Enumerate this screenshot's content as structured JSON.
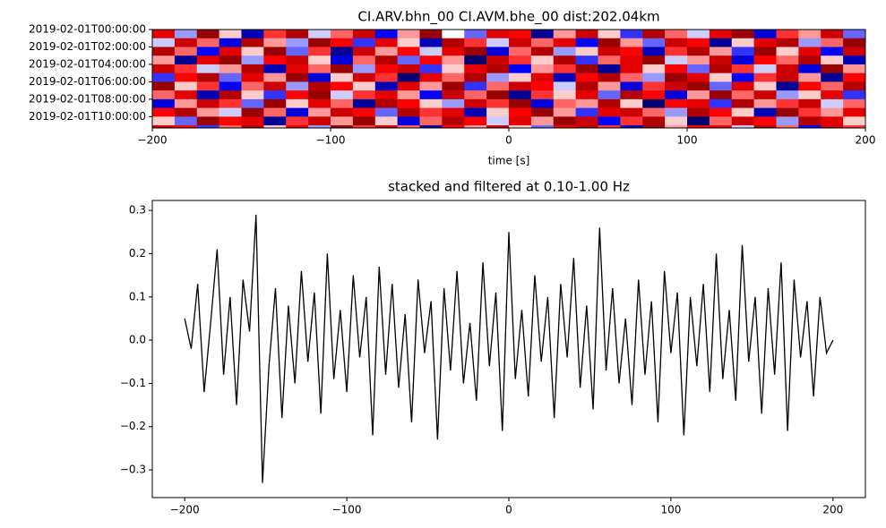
{
  "chart_data": [
    {
      "type": "heatmap",
      "title": "CI.ARV.bhn_00 CI.AVM.bhe_00  dist:202.04km",
      "xlabel": "time [s]",
      "xlim": [
        -200,
        200
      ],
      "xticks": [
        {
          "value": -200,
          "label": "−200"
        },
        {
          "value": -100,
          "label": "−100"
        },
        0,
        100,
        200
      ],
      "ylim": [
        0,
        11.3
      ],
      "yticks": [
        {
          "value": 0,
          "label": "2019-02-01T00:00:00"
        },
        {
          "value": 2,
          "label": "2019-02-01T02:00:00"
        },
        {
          "value": 4,
          "label": "2019-02-01T04:00:00"
        },
        {
          "value": 6,
          "label": "2019-02-01T06:00:00"
        },
        {
          "value": 8,
          "label": "2019-02-01T08:00:00"
        },
        {
          "value": 10,
          "label": "2019-02-01T10:00:00"
        }
      ],
      "colormap": [
        "#00004c",
        "#0000ff",
        "#ffffff",
        "#ff0000",
        "#7f0000"
      ],
      "clim": [
        -1,
        1
      ],
      "z": [
        [
          0.6,
          -0.2,
          0.9,
          0.1,
          -0.7,
          0.4,
          0.8,
          -0.1,
          0.3,
          0.7,
          -0.5,
          0.2,
          0.9,
          0.0,
          -0.3,
          0.6,
          0.5,
          -0.8,
          0.2,
          0.7,
          0.1,
          -0.4,
          0.8,
          0.3,
          -0.1,
          0.6,
          0.9,
          -0.6,
          0.4,
          0.2,
          0.7,
          -0.3
        ],
        [
          -0.1,
          0.7,
          0.3,
          -0.6,
          0.8,
          0.2,
          -0.2,
          0.9,
          0.5,
          -0.4,
          0.6,
          0.1,
          -0.7,
          0.8,
          0.4,
          -0.1,
          0.7,
          0.3,
          0.6,
          -0.5,
          0.9,
          0.2,
          -0.3,
          0.7,
          0.5,
          -0.8,
          0.1,
          0.6,
          0.8,
          -0.2,
          0.3,
          0.9
        ],
        [
          0.8,
          0.3,
          -0.5,
          0.6,
          0.1,
          0.9,
          -0.3,
          0.4,
          -0.8,
          0.7,
          0.2,
          0.5,
          -0.1,
          0.6,
          0.9,
          -0.6,
          0.3,
          0.8,
          -0.2,
          0.1,
          0.7,
          0.5,
          -0.7,
          0.4,
          0.8,
          0.2,
          -0.4,
          0.9,
          0.1,
          0.6,
          -0.5,
          0.7
        ],
        [
          0.2,
          -0.8,
          0.6,
          0.9,
          -0.2,
          0.5,
          0.7,
          0.1,
          -0.6,
          0.3,
          0.8,
          -0.3,
          0.5,
          0.2,
          -0.9,
          0.7,
          0.4,
          0.1,
          0.8,
          -0.4,
          0.3,
          0.6,
          0.9,
          -0.1,
          0.2,
          0.7,
          -0.6,
          0.5,
          0.3,
          0.8,
          0.1,
          -0.7
        ],
        [
          0.7,
          0.4,
          -0.1,
          0.2,
          0.8,
          -0.7,
          0.6,
          0.3,
          0.9,
          -0.2,
          0.5,
          0.7,
          -0.4,
          0.1,
          0.6,
          0.8,
          -0.5,
          0.2,
          0.4,
          0.9,
          -0.8,
          0.6,
          0.1,
          0.5,
          -0.3,
          0.8,
          0.4,
          -0.1,
          0.7,
          -0.6,
          0.9,
          0.2
        ],
        [
          -0.4,
          0.5,
          0.8,
          -0.3,
          0.6,
          0.2,
          0.9,
          -0.6,
          0.1,
          0.7,
          0.4,
          -0.9,
          0.6,
          0.3,
          0.8,
          -0.2,
          0.1,
          0.6,
          -0.7,
          0.5,
          0.8,
          0.3,
          -0.2,
          0.9,
          0.6,
          0.1,
          -0.5,
          0.4,
          0.7,
          0.2,
          -0.8,
          0.5
        ],
        [
          0.9,
          0.1,
          0.4,
          -0.5,
          0.3,
          0.7,
          -0.2,
          0.8,
          0.5,
          0.1,
          -0.7,
          0.6,
          0.2,
          0.9,
          -0.4,
          0.3,
          0.7,
          0.5,
          -0.1,
          0.8,
          0.2,
          -0.6,
          0.4,
          0.7,
          0.9,
          -0.3,
          0.6,
          0.1,
          -0.8,
          0.5,
          0.3,
          0.8
        ],
        [
          0.3,
          0.6,
          -0.7,
          0.8,
          0.1,
          -0.4,
          0.5,
          0.9,
          -0.1,
          0.4,
          0.6,
          0.2,
          -0.5,
          0.7,
          0.3,
          0.9,
          -0.8,
          0.4,
          0.1,
          0.6,
          -0.3,
          0.8,
          0.5,
          -0.6,
          0.2,
          0.9,
          0.3,
          0.7,
          -0.2,
          0.1,
          0.6,
          -0.4
        ],
        [
          -0.6,
          0.2,
          0.7,
          0.4,
          -0.3,
          0.9,
          0.1,
          0.6,
          0.3,
          -0.8,
          0.8,
          0.5,
          0.1,
          -0.2,
          0.7,
          0.4,
          0.9,
          -0.6,
          0.3,
          0.2,
          0.8,
          0.1,
          -0.9,
          0.5,
          0.6,
          -0.4,
          0.8,
          0.2,
          0.4,
          0.7,
          -0.1,
          0.3
        ],
        [
          0.5,
          0.8,
          0.2,
          -0.1,
          0.9,
          0.3,
          -0.6,
          0.2,
          0.7,
          0.5,
          -0.3,
          0.8,
          0.4,
          0.6,
          -0.7,
          0.1,
          0.5,
          0.9,
          0.2,
          -0.4,
          0.6,
          0.7,
          0.3,
          -0.2,
          0.8,
          0.5,
          0.1,
          -0.7,
          0.9,
          0.4,
          0.2,
          0.6
        ],
        [
          0.1,
          -0.3,
          0.9,
          0.5,
          0.6,
          -0.8,
          0.4,
          0.7,
          0.2,
          0.9,
          0.1,
          -0.6,
          0.3,
          0.8,
          0.5,
          -0.1,
          0.6,
          0.2,
          0.9,
          0.7,
          -0.5,
          0.4,
          0.8,
          0.1,
          -0.9,
          0.3,
          0.7,
          0.5,
          -0.2,
          0.8,
          0.6,
          0.1
        ],
        [
          0.7,
          0.5,
          -0.4,
          0.3,
          0.8,
          0.1,
          0.6,
          -0.2,
          0.9,
          0.4,
          0.7,
          0.3,
          -0.8,
          0.5,
          0.2,
          0.7,
          0.1,
          -0.3,
          0.6,
          0.8,
          0.4,
          -0.7,
          0.9,
          0.2,
          0.5,
          0.6,
          -0.1,
          0.8,
          0.3,
          -0.5,
          0.7,
          0.4
        ]
      ]
    },
    {
      "type": "line",
      "title": "stacked and filtered at 0.10-1.00 Hz",
      "color": "#000000",
      "xlim": [
        -220,
        220
      ],
      "xticks": [
        {
          "value": -200,
          "label": "−200"
        },
        {
          "value": -100,
          "label": "−100"
        },
        0,
        100,
        200
      ],
      "ylim": [
        -0.364,
        0.323
      ],
      "yticks": [
        {
          "value": -0.3,
          "label": "−0.3"
        },
        {
          "value": -0.2,
          "label": "−0.2"
        },
        {
          "value": -0.1,
          "label": "−0.1"
        },
        {
          "value": 0,
          "label": "0.0"
        },
        0.1,
        0.2,
        0.3
      ],
      "x": [
        -200,
        -196,
        -192,
        -188,
        -184,
        -180,
        -176,
        -172,
        -168,
        -164,
        -160,
        -156,
        -152,
        -148,
        -144,
        -140,
        -136,
        -132,
        -128,
        -124,
        -120,
        -116,
        -112,
        -108,
        -104,
        -100,
        -96,
        -92,
        -88,
        -84,
        -80,
        -76,
        -72,
        -68,
        -64,
        -60,
        -56,
        -52,
        -48,
        -44,
        -40,
        -36,
        -32,
        -28,
        -24,
        -20,
        -16,
        -12,
        -8,
        -4,
        0,
        4,
        8,
        12,
        16,
        20,
        24,
        28,
        32,
        36,
        40,
        44,
        48,
        52,
        56,
        60,
        64,
        68,
        72,
        76,
        80,
        84,
        88,
        92,
        96,
        100,
        104,
        108,
        112,
        116,
        120,
        124,
        128,
        132,
        136,
        140,
        144,
        148,
        152,
        156,
        160,
        164,
        168,
        172,
        176,
        180,
        184,
        188,
        192,
        196,
        200
      ],
      "values": [
        0.05,
        -0.02,
        0.13,
        -0.12,
        0.04,
        0.21,
        -0.08,
        0.1,
        -0.15,
        0.14,
        0.02,
        0.29,
        -0.33,
        -0.06,
        0.12,
        -0.18,
        0.08,
        -0.1,
        0.16,
        -0.05,
        0.11,
        -0.17,
        0.2,
        -0.09,
        0.07,
        -0.12,
        0.15,
        -0.04,
        0.1,
        -0.22,
        0.17,
        -0.08,
        0.13,
        -0.11,
        0.06,
        -0.19,
        0.14,
        -0.03,
        0.09,
        -0.23,
        0.12,
        -0.07,
        0.16,
        -0.1,
        0.04,
        -0.14,
        0.18,
        -0.06,
        0.11,
        -0.21,
        0.25,
        -0.09,
        0.07,
        -0.13,
        0.15,
        -0.05,
        0.1,
        -0.18,
        0.13,
        -0.04,
        0.19,
        -0.11,
        0.08,
        -0.16,
        0.26,
        -0.07,
        0.12,
        -0.1,
        0.05,
        -0.15,
        0.14,
        -0.08,
        0.09,
        -0.19,
        0.16,
        -0.03,
        0.11,
        -0.22,
        0.1,
        -0.06,
        0.13,
        -0.12,
        0.2,
        -0.09,
        0.07,
        -0.14,
        0.22,
        -0.05,
        0.1,
        -0.17,
        0.12,
        -0.08,
        0.18,
        -0.21,
        0.14,
        -0.04,
        0.09,
        -0.13,
        0.1,
        -0.03,
        0.0
      ]
    }
  ]
}
